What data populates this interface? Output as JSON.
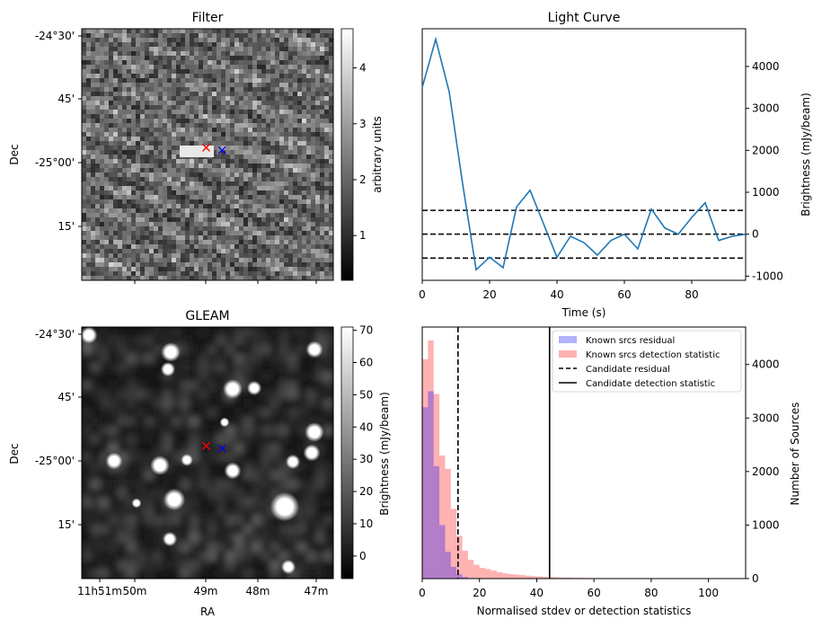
{
  "chart_data": [
    {
      "type": "heatmap",
      "title": "Filter",
      "xlabel": "",
      "ylabel": "Dec",
      "ytick_labels": [
        "-24°30'",
        "45'",
        "-25°00'",
        "15'"
      ],
      "colorbar": {
        "label": "arbitrary units",
        "ticks": [
          1,
          2,
          3,
          4
        ],
        "range": [
          0.2,
          4.7
        ]
      },
      "markers": [
        {
          "symbol": "x",
          "color": "#0000ff",
          "ra_min": 48.7,
          "dec_deg": -24.95
        },
        {
          "symbol": "x",
          "color": "#ff0000",
          "ra_min": 49.0,
          "dec_deg": -24.94
        }
      ]
    },
    {
      "type": "line",
      "title": "Light Curve",
      "xlabel": "Time (s)",
      "ylabel": "Brightness (mJy/beam)",
      "xlim": [
        0,
        96
      ],
      "ylim": [
        -1100,
        4900
      ],
      "xticks": [
        0,
        20,
        40,
        60,
        80
      ],
      "yticks": [
        -1000,
        0,
        1000,
        2000,
        3000,
        4000
      ],
      "series": [
        {
          "color": "#1f77b4",
          "x": [
            0,
            4,
            8,
            12,
            16,
            20,
            24,
            28,
            32,
            36,
            40,
            44,
            48,
            52,
            56,
            60,
            64,
            68,
            72,
            76,
            80,
            84,
            88,
            92,
            96
          ],
          "y": [
            3500,
            4650,
            3400,
            1200,
            -850,
            -550,
            -800,
            650,
            1050,
            250,
            -550,
            -50,
            -200,
            -500,
            -150,
            0,
            -350,
            600,
            150,
            0,
            400,
            750,
            -150,
            -50,
            0
          ]
        }
      ],
      "hlines": [
        {
          "y": 570,
          "style": "dashed",
          "color": "#000000"
        },
        {
          "y": 0,
          "style": "dashed",
          "color": "#000000"
        },
        {
          "y": -570,
          "style": "dashed",
          "color": "#000000"
        }
      ]
    },
    {
      "type": "heatmap",
      "title": "GLEAM",
      "xlabel": "RA",
      "ylabel": "Dec",
      "xtick_labels": [
        "11h51m",
        "50m",
        "49m",
        "48m",
        "47m"
      ],
      "ytick_labels": [
        "-24°30'",
        "45'",
        "-25°00'",
        "15'"
      ],
      "colorbar": {
        "label": "Brightness (mJy/beam)",
        "ticks": [
          0,
          10,
          20,
          30,
          40,
          50,
          60,
          70
        ],
        "range": [
          -7,
          71
        ]
      },
      "markers": [
        {
          "symbol": "x",
          "color": "#0000ff",
          "ra_min": 48.7,
          "dec_deg": -24.95
        },
        {
          "symbol": "x",
          "color": "#ff0000",
          "ra_min": 49.0,
          "dec_deg": -24.94
        }
      ]
    },
    {
      "type": "bar",
      "title": "",
      "xlabel": "Normalised stdev or detection statistics",
      "ylabel": "Number of Sources",
      "xlim": [
        0,
        113
      ],
      "ylim": [
        0,
        4700
      ],
      "xticks": [
        0,
        20,
        40,
        60,
        80,
        100
      ],
      "yticks": [
        0,
        1000,
        2000,
        3000,
        4000
      ],
      "legend": "top-right",
      "bin_width": 2,
      "series": [
        {
          "name": "Known srcs residual",
          "color": "#0000ff",
          "alpha": 0.3,
          "bins_start": 0,
          "values": [
            3200,
            3500,
            2100,
            1000,
            500,
            220,
            80,
            30,
            10,
            5
          ]
        },
        {
          "name": "Known srcs detection statistic",
          "color": "#ff0000",
          "alpha": 0.3,
          "bins_start": 0,
          "values": [
            4100,
            4450,
            3450,
            2300,
            2050,
            1300,
            800,
            520,
            350,
            260,
            200,
            180,
            150,
            120,
            100,
            85,
            75,
            65,
            55,
            45,
            40,
            35,
            30,
            25,
            20,
            20,
            15,
            15,
            12,
            10,
            10,
            8,
            8,
            6,
            6,
            5,
            5,
            4,
            4,
            3,
            3,
            3,
            2,
            2,
            2,
            2,
            2,
            1,
            1,
            1,
            1,
            1,
            1,
            1,
            1
          ]
        }
      ],
      "vlines": [
        {
          "name": "Candidate residual",
          "x": 12.5,
          "style": "dashed",
          "color": "#000000"
        },
        {
          "name": "Candidate detection statistic",
          "x": 44.5,
          "style": "solid",
          "color": "#000000"
        }
      ]
    }
  ]
}
